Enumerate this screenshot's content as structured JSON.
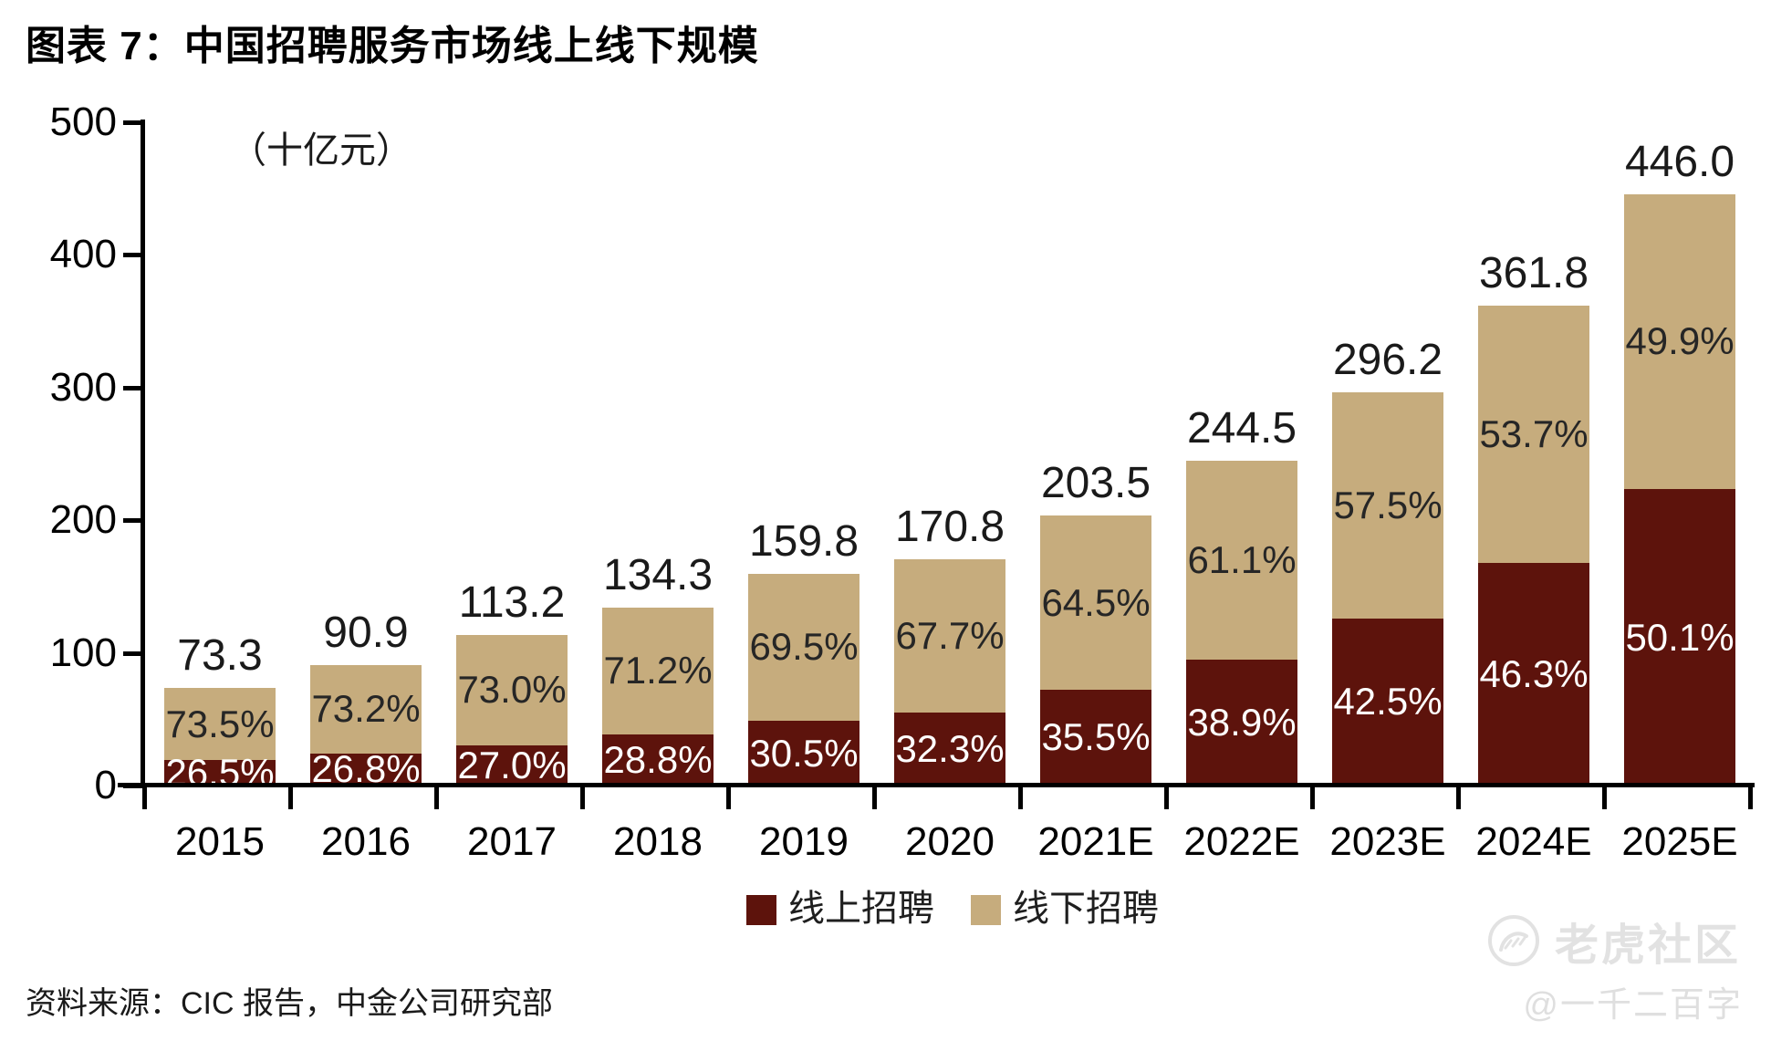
{
  "title": "图表 7：中国招聘服务市场线上线下规模",
  "unit_label": "（十亿元）",
  "source": "资料来源：CIC 报告，中金公司研究部",
  "colors": {
    "online": "#5D130C",
    "offline": "#C6AC7D",
    "axis": "#000000",
    "total_label": "#1A1A1A",
    "offline_label": "#262626",
    "online_label": "#FFFFFF",
    "watermark": "#E2E2E2"
  },
  "legend": {
    "online_label": "线上招聘",
    "offline_label": "线下招聘"
  },
  "watermark": {
    "community_name": "老虎社区",
    "handle": "@一千二百字",
    "logo": "tiger-logo"
  },
  "chart_data": {
    "type": "bar",
    "stacked": true,
    "title": "图表 7：中国招聘服务市场线上线下规模",
    "unit": "十亿元",
    "xlabel": "",
    "ylabel": "",
    "ylim": [
      0,
      500
    ],
    "y_ticks": [
      0,
      100,
      200,
      300,
      400,
      500
    ],
    "grid": false,
    "legend_position": "bottom",
    "categories": [
      "2015",
      "2016",
      "2017",
      "2018",
      "2019",
      "2020",
      "2021E",
      "2022E",
      "2023E",
      "2024E",
      "2025E"
    ],
    "totals": [
      73.3,
      90.9,
      113.2,
      134.3,
      159.8,
      170.8,
      203.5,
      244.5,
      296.2,
      361.8,
      446.0
    ],
    "total_labels": [
      "73.3",
      "90.9",
      "113.2",
      "134.3",
      "159.8",
      "170.8",
      "203.5",
      "244.5",
      "296.2",
      "361.8",
      "446.0"
    ],
    "series": [
      {
        "name": "线上招聘",
        "share_pct": [
          26.5,
          26.8,
          27.0,
          28.8,
          30.5,
          32.3,
          35.5,
          38.9,
          42.5,
          46.3,
          50.1
        ],
        "labels": [
          "26.5%",
          "26.8%",
          "27.0%",
          "28.8%",
          "30.5%",
          "32.3%",
          "35.5%",
          "38.9%",
          "42.5%",
          "46.3%",
          "50.1%"
        ]
      },
      {
        "name": "线下招聘",
        "share_pct": [
          73.5,
          73.2,
          73.0,
          71.2,
          69.5,
          67.7,
          64.5,
          61.1,
          57.5,
          53.7,
          49.9
        ],
        "labels": [
          "73.5%",
          "73.2%",
          "73.0%",
          "71.2%",
          "69.5%",
          "67.7%",
          "64.5%",
          "61.1%",
          "57.5%",
          "53.7%",
          "49.9%"
        ]
      }
    ]
  }
}
